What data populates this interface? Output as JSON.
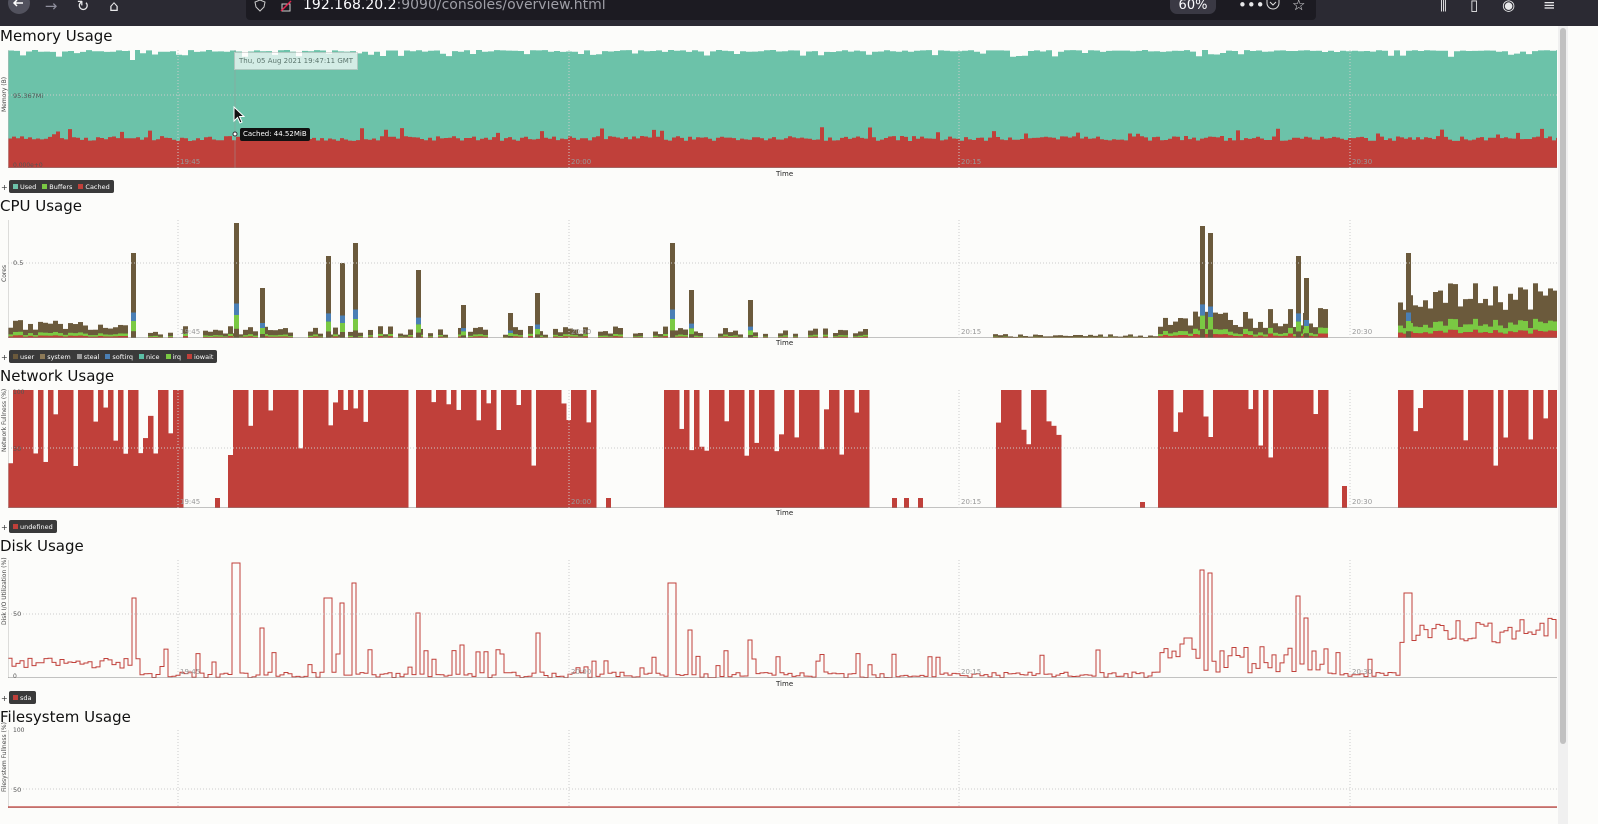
{
  "browser": {
    "url_host": "192.168.20.2",
    "url_rest": ":9090/consoles/overview.html",
    "zoom": "60%",
    "icons": [
      "back-icon",
      "forward-icon",
      "reload-icon",
      "home-icon",
      "shield-icon",
      "insecure-lock-icon",
      "more-icon",
      "pocket-icon",
      "star-icon",
      "library-icon",
      "reader-icon",
      "account-icon",
      "menu-icon"
    ]
  },
  "colors": {
    "used": "#6cc2a9",
    "buffers": "#7ac943",
    "cached": "#c0403a",
    "user": "#6b5a3c",
    "system": "#8d7a58",
    "steal": "#9a9a9a",
    "softirq": "#4a7fb5",
    "nice": "#5bbfa5",
    "irq": "#7ac943",
    "iowait": "#c0403a",
    "network": "#c0403a",
    "disk_line": "#c0403a"
  },
  "time_ticks": [
    "19:45",
    "20:00",
    "20:15",
    "20:30"
  ],
  "sections": {
    "memory": {
      "title": "Memory Usage",
      "ylabel": "Memory (B)",
      "ytick_mid": "95.367Mi",
      "ytick_low": "0.000e+0",
      "xlabel": "Time",
      "legend": [
        "Used",
        "Buffers",
        "Cached"
      ],
      "tooltip_date": "Thu, 05 Aug 2021 19:47:11 GMT",
      "tooltip_value": "Cached: 44.52MiB"
    },
    "cpu": {
      "title": "CPU Usage",
      "ylabel": "Cores",
      "ytick_mid": "0.5",
      "xlabel": "Time",
      "legend": [
        "user",
        "system",
        "steal",
        "softirq",
        "nice",
        "irq",
        "iowait"
      ]
    },
    "network": {
      "title": "Network Usage",
      "ylabel": "Network Fullness (%)",
      "ytick_top": "100",
      "ytick_mid": "50",
      "xlabel": "Time",
      "legend": [
        "undefined"
      ]
    },
    "disk": {
      "title": "Disk Usage",
      "ylabel": "Disk I/O Utilization (%)",
      "ytick_mid": "50",
      "ytick_low": "0",
      "xlabel": "Time",
      "legend": [
        "sda"
      ]
    },
    "filesystem": {
      "title": "Filesystem Usage",
      "ylabel": "Filesystem Fullness (%)",
      "ytick_top": "100",
      "ytick_mid": "50"
    }
  },
  "chart_data": [
    {
      "type": "area",
      "title": "Memory Usage",
      "xlabel": "Time",
      "ylabel": "Memory (B)",
      "x_ticks": [
        "19:45",
        "20:00",
        "20:15",
        "20:30"
      ],
      "series": [
        {
          "name": "Used",
          "note": "fills remainder to top"
        },
        {
          "name": "Buffers",
          "values_MiB": [
            0.5
          ]
        },
        {
          "name": "Cached",
          "values_MiB": [
            42,
            45,
            44.52,
            40,
            46,
            43,
            41,
            45,
            44,
            47,
            43,
            42,
            44
          ]
        }
      ]
    },
    {
      "type": "area",
      "title": "CPU Usage",
      "xlabel": "Time",
      "ylabel": "Cores",
      "x_ticks": [
        "19:45",
        "20:00",
        "20:15",
        "20:30"
      ],
      "series": [
        {
          "name": "user",
          "peaks": [
            0.05,
            0.45,
            0.05,
            0.62,
            0.05,
            0.55,
            0.35,
            0.05,
            0.55,
            0.02,
            0.03,
            0.62,
            0.45,
            0.35
          ]
        },
        {
          "name": "system"
        },
        {
          "name": "steal"
        },
        {
          "name": "softirq"
        },
        {
          "name": "nice"
        },
        {
          "name": "irq"
        },
        {
          "name": "iowait"
        }
      ]
    },
    {
      "type": "bar",
      "title": "Network Usage",
      "xlabel": "Time",
      "ylabel": "Network Fullness (%)",
      "ylim": [
        0,
        100
      ],
      "series": [
        {
          "name": "undefined"
        }
      ]
    },
    {
      "type": "line",
      "title": "Disk Usage",
      "xlabel": "Time",
      "ylabel": "Disk I/O Utilization (%)",
      "series": [
        {
          "name": "sda",
          "peaks": [
            5,
            65,
            95,
            75,
            55,
            35,
            85,
            25,
            10,
            90,
            70,
            55,
            48
          ]
        }
      ]
    },
    {
      "type": "line",
      "title": "Filesystem Usage",
      "ylabel": "Filesystem Fullness (%)",
      "ylim": [
        0,
        100
      ]
    }
  ]
}
